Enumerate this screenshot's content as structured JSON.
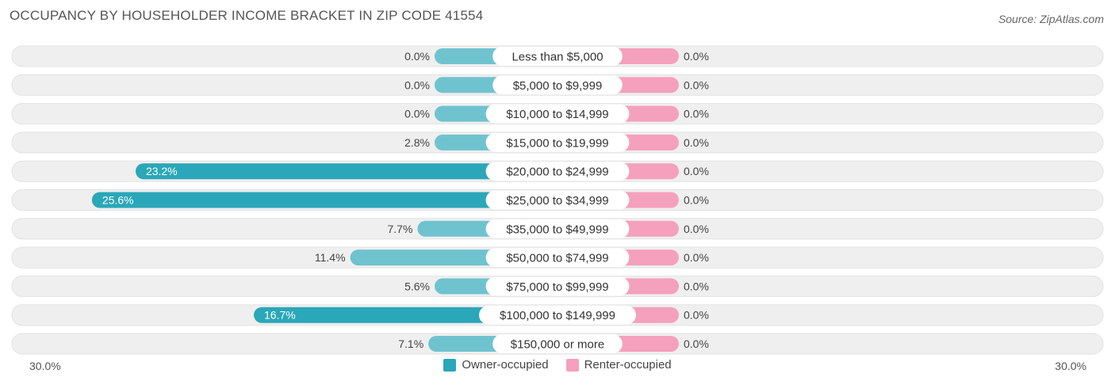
{
  "header": {
    "title": "OCCUPANCY BY HOUSEHOLDER INCOME BRACKET IN ZIP CODE 41554",
    "source": "Source: ZipAtlas.com"
  },
  "colors": {
    "owner": "#2aa7b8",
    "owner_light": "#6fc3cf",
    "renter": "#f5a0bc",
    "track": "#efefef"
  },
  "chart_data": {
    "type": "bar",
    "orientation": "horizontal-diverging",
    "categories": [
      "Less than $5,000",
      "$5,000 to $9,999",
      "$10,000 to $14,999",
      "$15,000 to $19,999",
      "$20,000 to $24,999",
      "$25,000 to $34,999",
      "$35,000 to $49,999",
      "$50,000 to $74,999",
      "$75,000 to $99,999",
      "$100,000 to $149,999",
      "$150,000 or more"
    ],
    "series": [
      {
        "name": "Owner-occupied",
        "values": [
          0.0,
          0.0,
          0.0,
          2.8,
          23.2,
          25.6,
          7.7,
          11.4,
          5.6,
          16.7,
          7.1
        ],
        "labels": [
          "0.0%",
          "0.0%",
          "0.0%",
          "2.8%",
          "23.2%",
          "25.6%",
          "7.7%",
          "11.4%",
          "5.6%",
          "16.7%",
          "7.1%"
        ]
      },
      {
        "name": "Renter-occupied",
        "values": [
          0.0,
          0.0,
          0.0,
          0.0,
          0.0,
          0.0,
          0.0,
          0.0,
          0.0,
          0.0,
          0.0
        ],
        "labels": [
          "0.0%",
          "0.0%",
          "0.0%",
          "0.0%",
          "0.0%",
          "0.0%",
          "0.0%",
          "0.0%",
          "0.0%",
          "0.0%",
          "0.0%"
        ]
      }
    ],
    "xlim": [
      -30,
      30
    ],
    "axis_left_label": "30.0%",
    "axis_right_label": "30.0%",
    "legend_position": "bottom-center"
  }
}
